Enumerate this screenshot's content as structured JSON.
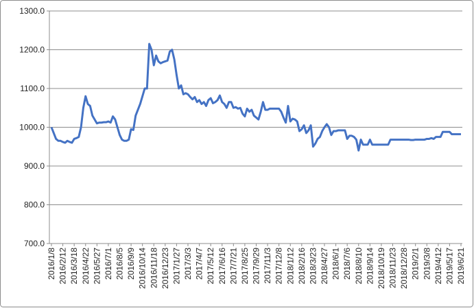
{
  "chart_data": {
    "type": "line",
    "categories": [
      "2016/1/8",
      null,
      null,
      null,
      null,
      "2016/2/12",
      null,
      null,
      null,
      null,
      "2016/3/18",
      null,
      null,
      null,
      null,
      "2016/4/22",
      null,
      null,
      null,
      null,
      "2016/5/27",
      null,
      null,
      null,
      null,
      "2016/7/1",
      null,
      null,
      null,
      null,
      "2016/8/5",
      null,
      null,
      null,
      null,
      "2016/9/9",
      null,
      null,
      null,
      null,
      "2016/10/14",
      null,
      null,
      null,
      null,
      "2016/11/18",
      null,
      null,
      null,
      null,
      "2016/12/23",
      null,
      null,
      null,
      null,
      "2017/1/27",
      null,
      null,
      null,
      null,
      "2017/3/3",
      null,
      null,
      null,
      null,
      "2017/4/7",
      null,
      null,
      null,
      null,
      "2017/5/12",
      null,
      null,
      null,
      null,
      "2017/6/16",
      null,
      null,
      null,
      null,
      "2017/7/21",
      null,
      null,
      null,
      null,
      "2017/8/25",
      null,
      null,
      null,
      null,
      "2017/9/29",
      null,
      null,
      null,
      null,
      "2017/11/3",
      null,
      null,
      null,
      null,
      "2017/12/8",
      null,
      null,
      null,
      null,
      "2018/1/12",
      null,
      null,
      null,
      null,
      "2018/2/16",
      null,
      null,
      null,
      null,
      "2018/3/23",
      null,
      null,
      null,
      null,
      "2018/4/27",
      null,
      null,
      null,
      null,
      "2018/6/1",
      null,
      null,
      null,
      null,
      "2018/7/6",
      null,
      null,
      null,
      null,
      "2018/8/10",
      null,
      null,
      null,
      null,
      "2018/9/14",
      null,
      null,
      null,
      null,
      "2018/10/19",
      null,
      null,
      null,
      null,
      "2018/11/23",
      null,
      null,
      null,
      null,
      "2018/12/28",
      null,
      null,
      null,
      null,
      "2019/2/1",
      null,
      null,
      null,
      null,
      "2019/3/8",
      null,
      null,
      null,
      null,
      "2019/4/12",
      null,
      null,
      null,
      null,
      "2019/5/17",
      null,
      null,
      null,
      null,
      "2019/6/21"
    ],
    "values": [
      1000,
      985,
      970,
      965,
      965,
      962,
      960,
      965,
      962,
      960,
      970,
      972,
      975,
      1000,
      1050,
      1080,
      1060,
      1055,
      1030,
      1020,
      1010,
      1012,
      1012,
      1013,
      1013,
      1015,
      1012,
      1028,
      1020,
      1000,
      980,
      968,
      965,
      965,
      968,
      995,
      993,
      1030,
      1045,
      1060,
      1080,
      1100,
      1100,
      1215,
      1200,
      1160,
      1185,
      1170,
      1165,
      1168,
      1170,
      1172,
      1195,
      1200,
      1175,
      1135,
      1100,
      1108,
      1085,
      1088,
      1085,
      1078,
      1072,
      1078,
      1065,
      1070,
      1060,
      1065,
      1055,
      1070,
      1075,
      1062,
      1065,
      1070,
      1082,
      1065,
      1060,
      1050,
      1065,
      1065,
      1050,
      1052,
      1048,
      1050,
      1035,
      1028,
      1048,
      1040,
      1045,
      1030,
      1025,
      1020,
      1040,
      1065,
      1045,
      1045,
      1048,
      1048,
      1048,
      1048,
      1048,
      1040,
      1025,
      1012,
      1055,
      1015,
      1022,
      1020,
      1015,
      990,
      995,
      1005,
      985,
      992,
      1005,
      950,
      958,
      970,
      975,
      990,
      1000,
      1008,
      1000,
      980,
      990,
      990,
      992,
      992,
      992,
      992,
      970,
      978,
      978,
      975,
      968,
      940,
      968,
      955,
      955,
      955,
      968,
      955,
      955,
      955,
      955,
      955,
      955,
      955,
      955,
      968,
      968,
      968,
      968,
      968,
      968,
      968,
      968,
      968,
      967,
      967,
      968,
      968,
      968,
      968,
      968,
      970,
      970,
      972,
      970,
      975,
      975,
      975,
      988,
      988,
      988,
      988,
      982,
      982,
      982,
      982,
      982
    ],
    "color": "#4472c4",
    "ylim": [
      700,
      1300
    ],
    "yticks": [
      {
        "value": 700,
        "label": "700.0"
      },
      {
        "value": 800,
        "label": "800.0"
      },
      {
        "value": 900,
        "label": "900.0"
      },
      {
        "value": 1000,
        "label": "1000.0"
      },
      {
        "value": 1100,
        "label": "1100.0"
      },
      {
        "value": 1200,
        "label": "1200.0"
      },
      {
        "value": 1300,
        "label": "1300.0"
      }
    ],
    "grid": true
  }
}
